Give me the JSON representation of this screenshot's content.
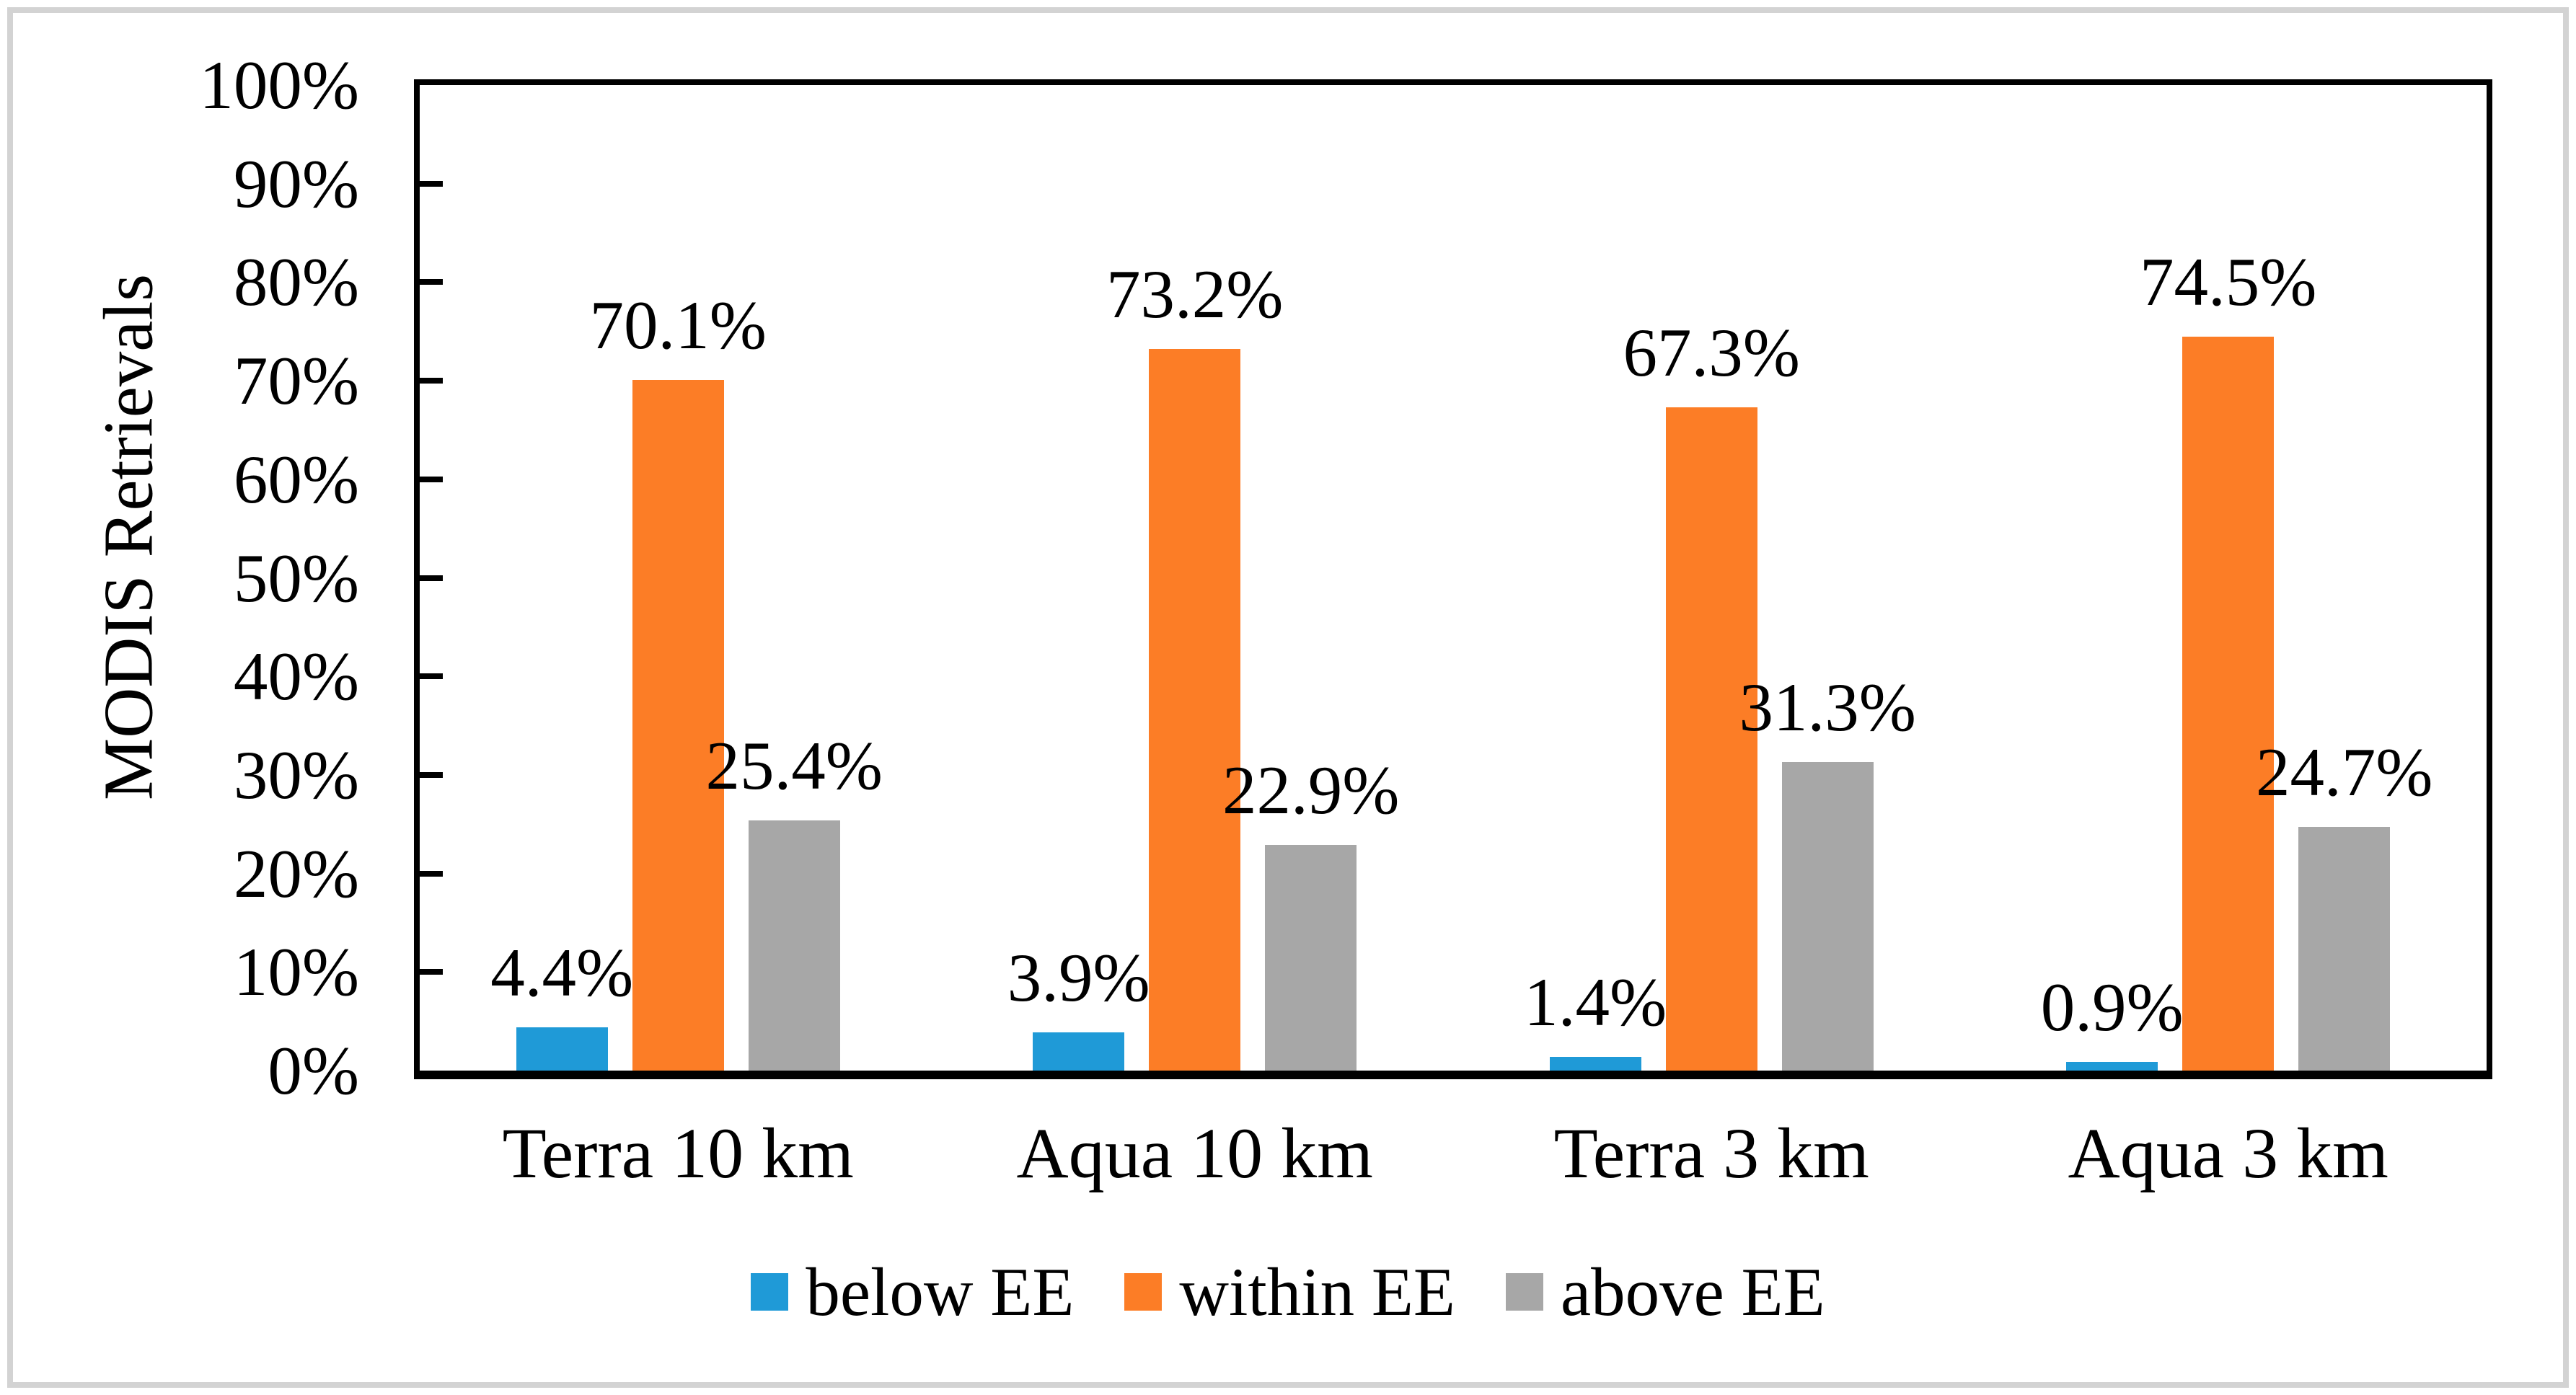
{
  "figure": {
    "background": "#ffffff",
    "frame_border_color": "#d3d3d3",
    "axis_color": "#000000",
    "text_color": "#000000"
  },
  "chart_data": {
    "type": "bar",
    "title": "",
    "xlabel": "",
    "ylabel": "MODIS Retrievals",
    "categories": [
      "Terra 10 km",
      "Aqua 10 km",
      "Terra 3 km",
      "Aqua 3 km"
    ],
    "series": [
      {
        "name": "below EE",
        "color": "#1F9AD7",
        "values": [
          4.4,
          3.9,
          1.4,
          0.9
        ],
        "labels": [
          "4.4%",
          "3.9%",
          "1.4%",
          "0.9%"
        ]
      },
      {
        "name": "within EE",
        "color": "#FC7D26",
        "values": [
          70.1,
          73.2,
          67.3,
          74.5
        ],
        "labels": [
          "70.1%",
          "73.2%",
          "67.3%",
          "74.5%"
        ]
      },
      {
        "name": "above EE",
        "color": "#A7A7A7",
        "values": [
          25.4,
          22.9,
          31.3,
          24.7
        ],
        "labels": [
          "25.4%",
          "22.9%",
          "31.3%",
          "24.7%"
        ]
      }
    ],
    "ylim": [
      0,
      100
    ],
    "ytick_step": 10,
    "ytick_labels": [
      "0%",
      "10%",
      "20%",
      "30%",
      "40%",
      "50%",
      "60%",
      "70%",
      "80%",
      "90%",
      "100%"
    ],
    "grid": false,
    "tick_style": "inside",
    "legend_position": "bottom",
    "data_label_position": "outside-end"
  }
}
